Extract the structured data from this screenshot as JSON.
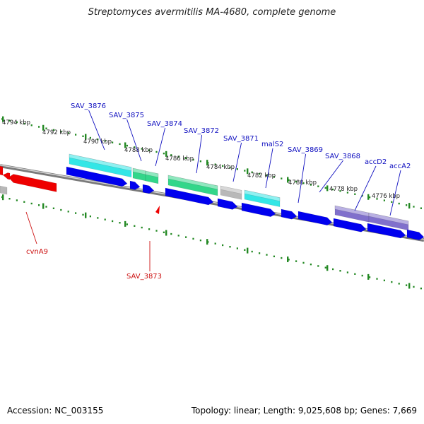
{
  "title": "Streptomyces avermitilis MA-4680, complete genome",
  "footer": {
    "accession": "Accession: NC_003155",
    "summary": "Topology: linear; Length: 9,025,608 bp; Genes: 7,669"
  },
  "colors": {
    "forward_cds": "#0000ee",
    "reverse_cds": "#ee0000",
    "cyan_feature": "#33e6e6",
    "green_feature": "#33d68a",
    "purple_feature": "#8070cc",
    "grey_feature": "#b8b8b8",
    "tick": "#228822",
    "backbone": "#7a7a7a",
    "label_forward": "#1010c0",
    "label_reverse": "#cc1010"
  },
  "scale_labels": [
    "4794 kbp",
    "4792 kbp",
    "4790 kbp",
    "4788 kbp",
    "4786 kbp",
    "4784 kbp",
    "4782 kbp",
    "4780 kbp",
    "4778 kbp",
    "4776 kbp"
  ],
  "gene_labels_forward": [
    "SAV_3876",
    "SAV_3875",
    "SAV_3874",
    "SAV_3872",
    "SAV_3871",
    "malS2",
    "SAV_3869",
    "SAV_3868",
    "accD2",
    "accA2"
  ],
  "gene_labels_reverse": [
    "cvnA9",
    "SAV_3873"
  ]
}
